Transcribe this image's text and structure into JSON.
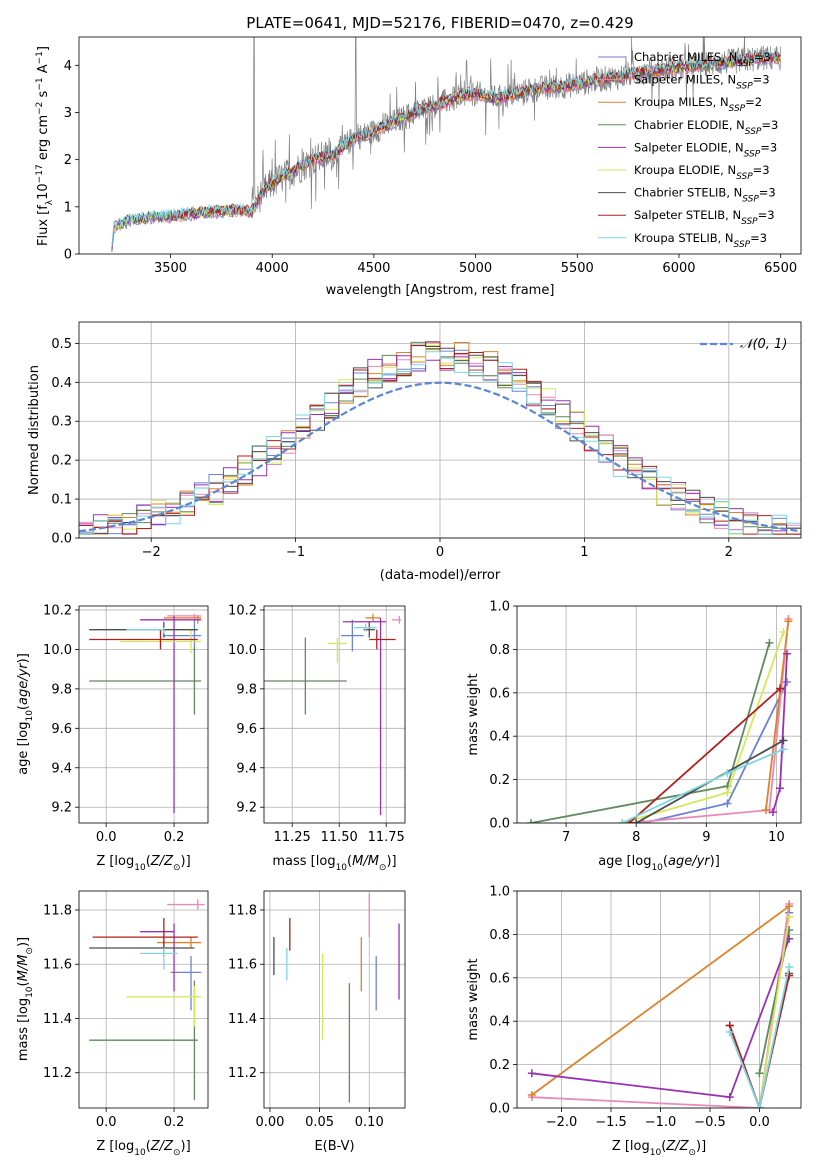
{
  "figure_title": "PLATE=0641, MJD=52176, FIBERID=0470, z=0.429",
  "colors": {
    "Chabrier MILES": "#6b83d6",
    "Salpeter MILES": "#e88ab8",
    "Kroupa MILES": "#e0822b",
    "Chabrier ELODIE": "#5f8a5f",
    "Salpeter ELODIE": "#9b30b5",
    "Kroupa ELODIE": "#d4e85a",
    "Chabrier STELIB": "#4d4d4d",
    "Salpeter STELIB": "#b01e1e",
    "Kroupa STELIB": "#7fd6e0",
    "normal": "#5b86d6",
    "data": "#808080"
  },
  "chart_data": [
    {
      "id": "spectrum",
      "type": "line",
      "xlabel": "wavelength [Angstrom, rest frame]",
      "ylabel": "Flux [f_λ 10^-17 erg cm^-2 s^-1 A^-1]",
      "xlim": [
        3050,
        6600
      ],
      "ylim": [
        0,
        4.6
      ],
      "xticks": [
        3500,
        4000,
        4500,
        5000,
        5500,
        6000,
        6500
      ],
      "yticks": [
        0,
        1,
        2,
        3,
        4
      ],
      "grid": false,
      "legend_position": "right",
      "continuum": [
        [
          3210,
          0.0
        ],
        [
          3220,
          0.55
        ],
        [
          3300,
          0.72
        ],
        [
          3400,
          0.78
        ],
        [
          3500,
          0.8
        ],
        [
          3600,
          0.85
        ],
        [
          3700,
          0.9
        ],
        [
          3800,
          0.92
        ],
        [
          3900,
          0.9
        ],
        [
          3950,
          1.3
        ],
        [
          4000,
          1.5
        ],
        [
          4100,
          1.75
        ],
        [
          4200,
          2.0
        ],
        [
          4300,
          2.1
        ],
        [
          4400,
          2.45
        ],
        [
          4500,
          2.6
        ],
        [
          4600,
          2.8
        ],
        [
          4700,
          3.0
        ],
        [
          4800,
          3.15
        ],
        [
          4900,
          3.3
        ],
        [
          5000,
          3.4
        ],
        [
          5100,
          3.3
        ],
        [
          5200,
          3.4
        ],
        [
          5300,
          3.5
        ],
        [
          5400,
          3.55
        ],
        [
          5500,
          3.6
        ],
        [
          5600,
          3.7
        ],
        [
          5700,
          3.75
        ],
        [
          5800,
          3.85
        ],
        [
          5900,
          3.9
        ],
        [
          6000,
          3.95
        ],
        [
          6100,
          4.0
        ],
        [
          6200,
          4.05
        ],
        [
          6300,
          4.1
        ],
        [
          6400,
          4.15
        ],
        [
          6500,
          4.15
        ]
      ],
      "series": [
        {
          "name": "Chabrier MILES, N_SSP=3"
        },
        {
          "name": "Salpeter MILES, N_SSP=3"
        },
        {
          "name": "Kroupa MILES, N_SSP=2"
        },
        {
          "name": "Chabrier ELODIE, N_SSP=3"
        },
        {
          "name": "Salpeter ELODIE, N_SSP=3"
        },
        {
          "name": "Kroupa ELODIE, N_SSP=3"
        },
        {
          "name": "Chabrier STELIB, N_SSP=3"
        },
        {
          "name": "Salpeter STELIB, N_SSP=3"
        },
        {
          "name": "Kroupa STELIB, N_SSP=3"
        }
      ]
    },
    {
      "id": "residuals",
      "type": "line",
      "xlabel": "(data-model)/error",
      "ylabel": "Normed distribution",
      "xlim": [
        -2.5,
        2.5
      ],
      "ylim": [
        0,
        0.555
      ],
      "xticks": [
        -2,
        -1,
        0,
        1,
        2
      ],
      "yticks": [
        0.0,
        0.1,
        0.2,
        0.3,
        0.4,
        0.5
      ],
      "grid": true,
      "legend_position": "upper right",
      "normal_label": "𝒩(0, 1)",
      "bin_width": 0.1
    },
    {
      "id": "age_vs_Z",
      "type": "scatter",
      "xlabel": "Z [log10(Z/Z⊙)]",
      "ylabel": "age  [log10(age/yr)]",
      "xlim": [
        -0.08,
        0.3
      ],
      "ylim": [
        9.12,
        10.22
      ],
      "xticks": [
        0.0,
        0.2
      ],
      "yticks": [
        9.2,
        9.4,
        9.6,
        9.8,
        10.0,
        10.2
      ],
      "grid": true,
      "points": [
        {
          "series": "Chabrier MILES",
          "x": 0.26,
          "xerr": [
            0.09,
            0.02
          ],
          "y": 10.07,
          "yerr": [
            0.08,
            0.08
          ]
        },
        {
          "series": "Salpeter MILES",
          "x": 0.26,
          "xerr": [
            0.08,
            0.02
          ],
          "y": 10.17,
          "yerr": [
            0.02,
            0.01
          ]
        },
        {
          "series": "Kroupa MILES",
          "x": 0.27,
          "xerr": [
            0.1,
            0.01
          ],
          "y": 10.16,
          "yerr": [
            0.03,
            0.01
          ]
        },
        {
          "series": "Chabrier ELODIE",
          "x": 0.26,
          "xerr": [
            0.31,
            0.02
          ],
          "y": 9.84,
          "yerr": [
            0.17,
            0.17
          ]
        },
        {
          "series": "Salpeter ELODIE",
          "x": 0.2,
          "xerr": [
            0.1,
            0.08
          ],
          "y": 10.15,
          "yerr": [
            0.98,
            0.02
          ]
        },
        {
          "series": "Kroupa ELODIE",
          "x": 0.25,
          "xerr": [
            0.21,
            0.03
          ],
          "y": 10.04,
          "yerr": [
            0.06,
            0.06
          ]
        },
        {
          "series": "Chabrier STELIB",
          "x": 0.17,
          "xerr": [
            0.22,
            0.1
          ],
          "y": 10.1,
          "yerr": [
            0.04,
            0.04
          ]
        },
        {
          "series": "Salpeter STELIB",
          "x": 0.16,
          "xerr": [
            0.21,
            0.11
          ],
          "y": 10.05,
          "yerr": [
            0.05,
            0.05
          ]
        },
        {
          "series": "Kroupa STELIB",
          "x": 0.17,
          "xerr": [
            0.11,
            0.0
          ],
          "y": 10.1,
          "yerr": [
            0.02,
            0.01
          ]
        }
      ]
    },
    {
      "id": "age_vs_mass",
      "type": "scatter",
      "xlabel": "mass [log10(M/M⊙)]",
      "ylabel": "",
      "xlim": [
        11.1,
        11.85
      ],
      "ylim": [
        9.12,
        10.22
      ],
      "xticks": [
        11.25,
        11.5,
        11.75
      ],
      "yticks": [
        9.2,
        9.4,
        9.6,
        9.8,
        10.0,
        10.2
      ],
      "grid": true,
      "points": [
        {
          "series": "Chabrier MILES",
          "x": 11.57,
          "xerr": [
            0.06,
            0.06
          ],
          "y": 10.07,
          "yerr": [
            0.08,
            0.08
          ]
        },
        {
          "series": "Salpeter MILES",
          "x": 11.82,
          "xerr": [
            0.04,
            0.01
          ],
          "y": 10.15,
          "yerr": [
            0.02,
            0.02
          ]
        },
        {
          "series": "Kroupa MILES",
          "x": 11.68,
          "xerr": [
            0.04,
            0.04
          ],
          "y": 10.16,
          "yerr": [
            0.02,
            0.02
          ]
        },
        {
          "series": "Chabrier ELODIE",
          "x": 11.32,
          "xerr": [
            0.22,
            0.22
          ],
          "y": 9.84,
          "yerr": [
            0.17,
            0.22
          ]
        },
        {
          "series": "Salpeter ELODIE",
          "x": 11.72,
          "xerr": [
            0.2,
            0.03
          ],
          "y": 10.14,
          "yerr": [
            0.98,
            0.02
          ]
        },
        {
          "series": "Kroupa ELODIE",
          "x": 11.49,
          "xerr": [
            0.05,
            0.05
          ],
          "y": 10.03,
          "yerr": [
            0.1,
            0.03
          ]
        },
        {
          "series": "Chabrier STELIB",
          "x": 11.66,
          "xerr": [
            0.03,
            0.03
          ],
          "y": 10.1,
          "yerr": [
            0.04,
            0.04
          ]
        },
        {
          "series": "Salpeter STELIB",
          "x": 11.7,
          "xerr": [
            0.04,
            0.1
          ],
          "y": 10.05,
          "yerr": [
            0.05,
            0.05
          ]
        },
        {
          "series": "Kroupa STELIB",
          "x": 11.64,
          "xerr": [
            0.06,
            0.06
          ],
          "y": 10.11,
          "yerr": [
            0.02,
            0.02
          ]
        }
      ]
    },
    {
      "id": "mass_vs_Z",
      "type": "scatter",
      "xlabel": "Z [log10(Z/Z⊙)]",
      "ylabel": "mass [log10(M/M⊙)]",
      "xlim": [
        -0.08,
        0.3
      ],
      "ylim": [
        11.07,
        11.87
      ],
      "xticks": [
        0.0,
        0.2
      ],
      "yticks": [
        11.2,
        11.4,
        11.6,
        11.8
      ],
      "grid": true,
      "points": [
        {
          "series": "Chabrier MILES",
          "x": 0.25,
          "xerr": [
            0.06,
            0.03
          ],
          "y": 11.57,
          "yerr": [
            0.14,
            0.06
          ]
        },
        {
          "series": "Salpeter MILES",
          "x": 0.27,
          "xerr": [
            0.09,
            0.02
          ],
          "y": 11.82,
          "yerr": [
            0.02,
            0.02
          ]
        },
        {
          "series": "Kroupa MILES",
          "x": 0.25,
          "xerr": [
            0.1,
            0.03
          ],
          "y": 11.68,
          "yerr": [
            0.02,
            0.02
          ]
        },
        {
          "series": "Chabrier ELODIE",
          "x": 0.26,
          "xerr": [
            0.31,
            0.01
          ],
          "y": 11.32,
          "yerr": [
            0.22,
            0.22
          ]
        },
        {
          "series": "Salpeter ELODIE",
          "x": 0.2,
          "xerr": [
            0.1,
            0.0
          ],
          "y": 11.72,
          "yerr": [
            0.22,
            0.03
          ]
        },
        {
          "series": "Kroupa ELODIE",
          "x": 0.26,
          "xerr": [
            0.2,
            0.02
          ],
          "y": 11.48,
          "yerr": [
            0.11,
            0.04
          ]
        },
        {
          "series": "Chabrier STELIB",
          "x": 0.17,
          "xerr": [
            0.22,
            0.09
          ],
          "y": 11.66,
          "yerr": [
            0.03,
            0.03
          ]
        },
        {
          "series": "Salpeter STELIB",
          "x": 0.17,
          "xerr": [
            0.21,
            0.1
          ],
          "y": 11.7,
          "yerr": [
            0.03,
            0.07
          ]
        },
        {
          "series": "Kroupa STELIB",
          "x": 0.17,
          "xerr": [
            0.07,
            0.04
          ],
          "y": 11.64,
          "yerr": [
            0.06,
            0.02
          ]
        }
      ]
    },
    {
      "id": "mass_vs_EBV",
      "type": "scatter",
      "xlabel": "E(B-V)",
      "ylabel": "",
      "xlim": [
        -0.006,
        0.136
      ],
      "ylim": [
        11.07,
        11.87
      ],
      "xticks": [
        0.0,
        0.05,
        0.1
      ],
      "yticks": [
        11.2,
        11.4,
        11.6,
        11.8
      ],
      "grid": true,
      "points": [
        {
          "series": "Chabrier MILES",
          "x": 0.107,
          "y": 11.53,
          "yerr": [
            0.1,
            0.1
          ]
        },
        {
          "series": "Salpeter MILES",
          "x": 0.1,
          "y": 11.78,
          "yerr": [
            0.08,
            0.08
          ]
        },
        {
          "series": "Kroupa MILES",
          "x": 0.092,
          "y": 11.6,
          "yerr": [
            0.1,
            0.1
          ]
        },
        {
          "series": "Chabrier ELODIE",
          "x": 0.08,
          "y": 11.31,
          "yerr": [
            0.22,
            0.22
          ]
        },
        {
          "series": "Salpeter ELODIE",
          "x": 0.13,
          "y": 11.61,
          "yerr": [
            0.14,
            0.14
          ]
        },
        {
          "series": "Kroupa ELODIE",
          "x": 0.053,
          "y": 11.48,
          "yerr": [
            0.16,
            0.16
          ]
        },
        {
          "series": "Chabrier STELIB",
          "x": 0.004,
          "y": 11.63,
          "yerr": [
            0.07,
            0.07
          ]
        },
        {
          "series": "Salpeter STELIB",
          "x": 0.02,
          "y": 11.71,
          "yerr": [
            0.06,
            0.06
          ]
        },
        {
          "series": "Kroupa STELIB",
          "x": 0.017,
          "y": 11.6,
          "yerr": [
            0.06,
            0.06
          ]
        }
      ]
    },
    {
      "id": "weight_vs_age",
      "type": "line",
      "xlabel": "age  [log10(age/yr)]",
      "ylabel": "mass weight",
      "xlim": [
        6.3,
        10.35
      ],
      "ylim": [
        0,
        1.0
      ],
      "xticks": [
        7,
        8,
        9,
        10
      ],
      "yticks": [
        0.0,
        0.2,
        0.4,
        0.6,
        0.8,
        1.0
      ],
      "grid": true,
      "series": [
        {
          "name": "Chabrier MILES",
          "points": [
            [
              8.1,
              0.0
            ],
            [
              9.3,
              0.09
            ],
            [
              10.15,
              0.65
            ]
          ]
        },
        {
          "name": "Salpeter MILES",
          "points": [
            [
              7.9,
              0.0
            ],
            [
              9.9,
              0.06
            ],
            [
              10.17,
              0.94
            ]
          ]
        },
        {
          "name": "Kroupa MILES",
          "points": [
            [
              9.85,
              0.06
            ],
            [
              10.17,
              0.93
            ]
          ]
        },
        {
          "name": "Chabrier ELODIE",
          "points": [
            [
              6.5,
              0.0
            ],
            [
              9.3,
              0.17
            ],
            [
              9.9,
              0.83
            ]
          ]
        },
        {
          "name": "Salpeter ELODIE",
          "points": [
            [
              9.95,
              0.05
            ],
            [
              10.05,
              0.16
            ],
            [
              10.15,
              0.78
            ]
          ]
        },
        {
          "name": "Kroupa ELODIE",
          "points": [
            [
              7.8,
              0.0
            ],
            [
              9.3,
              0.14
            ],
            [
              10.1,
              0.88
            ]
          ]
        },
        {
          "name": "Chabrier STELIB",
          "points": [
            [
              8.0,
              0.0
            ],
            [
              10.1,
              0.38
            ]
          ]
        },
        {
          "name": "Salpeter STELIB",
          "points": [
            [
              7.9,
              0.0
            ],
            [
              10.05,
              0.62
            ]
          ]
        },
        {
          "name": "Kroupa STELIB",
          "points": [
            [
              7.8,
              0.0
            ],
            [
              9.3,
              0.23
            ],
            [
              10.1,
              0.34
            ]
          ]
        }
      ]
    },
    {
      "id": "weight_vs_Z",
      "type": "line",
      "xlabel": "Z [log10(Z/Z⊙)]",
      "ylabel": "mass weight",
      "xlim": [
        -2.45,
        0.42
      ],
      "ylim": [
        0,
        1.0
      ],
      "xticks": [
        -2.0,
        -1.5,
        -1.0,
        -0.5,
        0.0
      ],
      "yticks": [
        0.0,
        0.2,
        0.4,
        0.6,
        0.8,
        1.0
      ],
      "grid": true,
      "series": [
        {
          "name": "Chabrier MILES",
          "points": [
            [
              0.0,
              0.0
            ],
            [
              0.3,
              0.9
            ]
          ]
        },
        {
          "name": "Salpeter MILES",
          "points": [
            [
              -2.3,
              0.05
            ],
            [
              0.0,
              0.0
            ],
            [
              0.3,
              0.94
            ]
          ]
        },
        {
          "name": "Kroupa MILES",
          "points": [
            [
              -2.3,
              0.06
            ],
            [
              0.3,
              0.93
            ]
          ]
        },
        {
          "name": "Chabrier ELODIE",
          "points": [
            [
              0.0,
              0.16
            ],
            [
              0.3,
              0.82
            ]
          ]
        },
        {
          "name": "Salpeter ELODIE",
          "points": [
            [
              -2.3,
              0.16
            ],
            [
              -0.3,
              0.05
            ],
            [
              0.3,
              0.78
            ]
          ]
        },
        {
          "name": "Kroupa ELODIE",
          "points": [
            [
              0.0,
              0.0
            ],
            [
              0.3,
              0.88
            ]
          ]
        },
        {
          "name": "Chabrier STELIB",
          "points": [
            [
              -0.3,
              0.38
            ],
            [
              0.0,
              0.0
            ],
            [
              0.3,
              0.62
            ]
          ]
        },
        {
          "name": "Salpeter STELIB",
          "points": [
            [
              -0.3,
              0.38
            ],
            [
              0.0,
              0.0
            ],
            [
              0.3,
              0.61
            ]
          ]
        },
        {
          "name": "Kroupa STELIB",
          "points": [
            [
              -0.3,
              0.35
            ],
            [
              0.0,
              0.0
            ],
            [
              0.3,
              0.65
            ]
          ]
        }
      ]
    }
  ]
}
